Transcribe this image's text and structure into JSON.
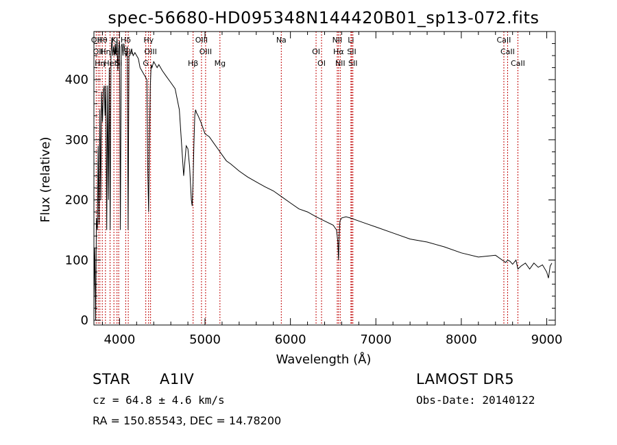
{
  "chart_data": {
    "type": "line",
    "title": "spec-56680-HD095348N144420B01_sp13-072.fits",
    "xlabel": "Wavelength (Å)",
    "ylabel": "Flux (relative)",
    "xlim": [
      3700,
      9100
    ],
    "ylim": [
      -8,
      480
    ],
    "xticks": [
      4000,
      5000,
      6000,
      7000,
      8000,
      9000
    ],
    "yticks": [
      0,
      100,
      200,
      300,
      400
    ],
    "grid": false,
    "series": [
      {
        "x": [
          3700,
          3710,
          3720,
          3730,
          3740,
          3750,
          3760,
          3770,
          3780,
          3790,
          3800,
          3810,
          3820,
          3830,
          3840,
          3850,
          3860,
          3870,
          3880,
          3890,
          3900,
          3910,
          3920,
          3930,
          3940,
          3950,
          3960,
          3970,
          3980,
          3990,
          4000,
          4010,
          4020,
          4030,
          4040,
          4050,
          4060,
          4070,
          4080,
          4090,
          4100,
          4110,
          4120,
          4140,
          4160,
          4180,
          4200,
          4220,
          4240,
          4260,
          4280,
          4300,
          4320,
          4330,
          4340,
          4350,
          4360,
          4370,
          4380,
          4400,
          4420,
          4440,
          4460,
          4480,
          4500,
          4550,
          4600,
          4650,
          4700,
          4750,
          4780,
          4800,
          4820,
          4840,
          4850,
          4860,
          4870,
          4880,
          4890,
          4900,
          4920,
          4950,
          5000,
          5050,
          5100,
          5150,
          5200,
          5250,
          5300,
          5400,
          5500,
          5600,
          5700,
          5800,
          5900,
          6000,
          6100,
          6200,
          6300,
          6400,
          6500,
          6540,
          6555,
          6563,
          6570,
          6580,
          6600,
          6650,
          6700,
          6800,
          6900,
          7000,
          7200,
          7400,
          7600,
          7800,
          8000,
          8200,
          8400,
          8498,
          8520,
          8542,
          8570,
          8600,
          8640,
          8662,
          8700,
          8750,
          8800,
          8850,
          8900,
          8950,
          9000,
          9020,
          9040,
          9060
        ],
        "y": [
          35,
          120,
          0,
          170,
          150,
          290,
          160,
          350,
          200,
          380,
          330,
          380,
          390,
          340,
          390,
          150,
          390,
          200,
          420,
          150,
          440,
          470,
          440,
          455,
          440,
          460,
          440,
          470,
          415,
          450,
          465,
          150,
          455,
          460,
          440,
          460,
          450,
          440,
          440,
          455,
          150,
          440,
          440,
          450,
          440,
          445,
          440,
          435,
          420,
          415,
          410,
          405,
          400,
          250,
          180,
          300,
          390,
          425,
          420,
          430,
          425,
          420,
          425,
          420,
          415,
          405,
          395,
          385,
          350,
          240,
          290,
          285,
          255,
          200,
          190,
          230,
          290,
          340,
          350,
          345,
          340,
          330,
          310,
          305,
          295,
          285,
          275,
          265,
          260,
          248,
          238,
          230,
          222,
          215,
          205,
          195,
          185,
          180,
          172,
          165,
          158,
          150,
          130,
          100,
          140,
          165,
          170,
          172,
          170,
          165,
          160,
          155,
          145,
          135,
          130,
          122,
          112,
          105,
          108,
          98,
          96,
          100,
          98,
          93,
          100,
          85,
          90,
          95,
          85,
          95,
          88,
          92,
          80,
          70,
          90,
          95
        ]
      }
    ],
    "lines": [
      {
        "x": 3727,
        "labels": [
          "OII"
        ]
      },
      {
        "x": 3750,
        "labels": [
          "OII"
        ]
      },
      {
        "x": 3770,
        "labels": [
          "Hη"
        ]
      },
      {
        "x": 3798,
        "labels": [
          "Hθ"
        ]
      },
      {
        "x": 3835,
        "labels": [
          "Hη"
        ]
      },
      {
        "x": 3889,
        "labels": [
          "HeI"
        ]
      },
      {
        "x": 3934,
        "labels": [
          "K"
        ]
      },
      {
        "x": 3970,
        "labels": [
          "H"
        ]
      },
      {
        "x": 3990,
        "labels": [
          "Si"
        ]
      },
      {
        "x": 4072,
        "labels": [
          "Hδ"
        ]
      },
      {
        "x": 4102,
        "labels": [
          "SII"
        ]
      },
      {
        "x": 4307,
        "labels": [
          "G"
        ]
      },
      {
        "x": 4340,
        "labels": [
          "Hγ"
        ]
      },
      {
        "x": 4363,
        "labels": [
          "OIII"
        ]
      },
      {
        "x": 4861,
        "labels": [
          "Hβ"
        ]
      },
      {
        "x": 4959,
        "labels": [
          "OIII"
        ]
      },
      {
        "x": 5007,
        "labels": [
          "OIII"
        ]
      },
      {
        "x": 5175,
        "labels": [
          "Mg"
        ]
      },
      {
        "x": 5893,
        "labels": [
          "Na"
        ]
      },
      {
        "x": 6300,
        "labels": [
          "OI"
        ]
      },
      {
        "x": 6364,
        "labels": [
          "OI"
        ]
      },
      {
        "x": 6548,
        "labels": [
          "NII"
        ]
      },
      {
        "x": 6563,
        "labels": [
          "Hα"
        ]
      },
      {
        "x": 6583,
        "labels": [
          "NII"
        ]
      },
      {
        "x": 6708,
        "labels": [
          "Li"
        ]
      },
      {
        "x": 6717,
        "labels": [
          "SII"
        ]
      },
      {
        "x": 6731,
        "labels": [
          "SII"
        ]
      },
      {
        "x": 8498,
        "labels": [
          "CaII"
        ]
      },
      {
        "x": 8542,
        "labels": [
          "CaII"
        ]
      },
      {
        "x": 8662,
        "labels": [
          "CaII"
        ]
      }
    ],
    "colors": {
      "spectrum": "#000000",
      "line_marker": "#c00000"
    }
  },
  "info": {
    "object_class": "STAR",
    "subclass": "A1IV",
    "survey": "LAMOST DR5",
    "redshift": "cz = 64.8 ± 4.6 km/s",
    "obs_date": "Obs-Date: 20140122",
    "coords": "RA = 150.85543, DEC =  14.78200"
  }
}
